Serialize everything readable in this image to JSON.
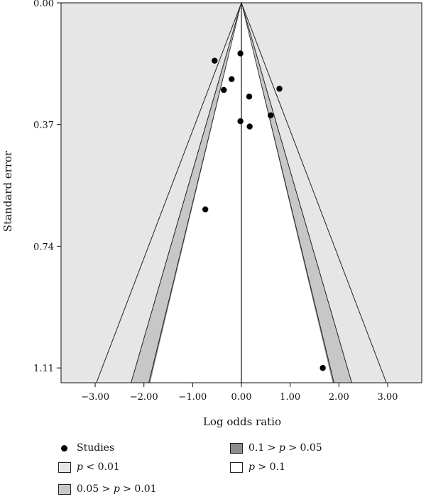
{
  "chart_data": {
    "type": "scatter",
    "subtype": "contour-enhanced funnel plot",
    "xlabel": "Log odds ratio",
    "ylabel": "Standard error",
    "xlim": [
      -3.7,
      3.7
    ],
    "ylim": [
      0,
      1.155
    ],
    "y_reversed": true,
    "x_ticks": [
      -3.0,
      -2.0,
      -1.0,
      0.0,
      1.0,
      2.0,
      3.0
    ],
    "x_tick_labels": [
      "−3.00",
      "−2.00",
      "−1.00",
      "0.00",
      "1.00",
      "2.00",
      "3.00"
    ],
    "y_ticks": [
      0.0,
      0.37,
      0.74,
      1.11
    ],
    "y_tick_labels": [
      "0.00",
      "0.37",
      "0.74",
      "1.11"
    ],
    "reference_line_x": 0,
    "contour_z": {
      "p_0_1": 1.645,
      "p_0_05": 1.96,
      "p_0_01": 2.576
    },
    "studies": [
      {
        "x": -0.55,
        "y": 0.176
      },
      {
        "x": -0.02,
        "y": 0.154
      },
      {
        "x": -0.2,
        "y": 0.232
      },
      {
        "x": -0.36,
        "y": 0.265
      },
      {
        "x": 0.16,
        "y": 0.285
      },
      {
        "x": 0.78,
        "y": 0.261
      },
      {
        "x": 0.6,
        "y": 0.342
      },
      {
        "x": -0.02,
        "y": 0.36
      },
      {
        "x": 0.17,
        "y": 0.376
      },
      {
        "x": -0.74,
        "y": 0.628
      },
      {
        "x": 1.67,
        "y": 1.11
      }
    ],
    "legend_position": "bottom",
    "colors": {
      "background": "#e6e6e6",
      "p_lt_0_01": "#e6e6e6",
      "p_0_05_0_01": "#c7c7c7",
      "p_0_1_0_05": "#8c8c8c",
      "p_gt_0_1": "#ffffff"
    }
  },
  "legend": {
    "studies": "Studies",
    "p_lt_001": {
      "sym": "p",
      "rest": " < 0.01"
    },
    "p_005_001": {
      "pre": "0.05 > ",
      "sym": "p",
      "rest": " > 0.01"
    },
    "p_01_005": {
      "pre": "0.1 > ",
      "sym": "p",
      "rest": " > 0.05"
    },
    "p_gt_01": {
      "sym": "p",
      "rest": " > 0.1"
    }
  }
}
